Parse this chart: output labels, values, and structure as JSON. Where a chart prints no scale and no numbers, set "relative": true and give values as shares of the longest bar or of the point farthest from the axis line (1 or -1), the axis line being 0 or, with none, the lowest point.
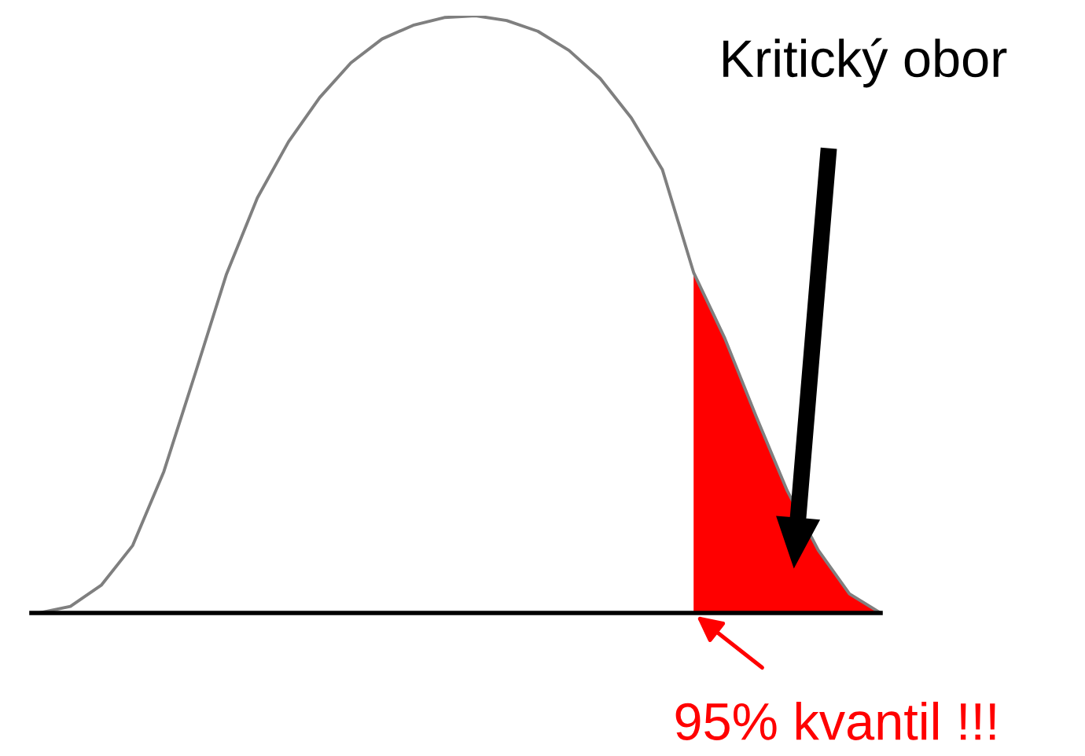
{
  "chart_data": {
    "type": "line",
    "relative": true,
    "categories": [
      null,
      null,
      null,
      null,
      null,
      null,
      null,
      null,
      null,
      null,
      null,
      null,
      null,
      null,
      null,
      null,
      null,
      null,
      null,
      null,
      null,
      null,
      null,
      null,
      null,
      null,
      null,
      null
    ],
    "series": [
      {
        "color": "#7f7f7f",
        "values": [
          0,
          0.011,
          0.047,
          0.113,
          0.237,
          0.4,
          0.566,
          0.695,
          0.789,
          0.863,
          0.921,
          0.961,
          0.984,
          0.997,
          1,
          0.992,
          0.974,
          0.942,
          0.895,
          0.829,
          0.742,
          0.57,
          0.46,
          0.33,
          0.205,
          0.105,
          0.032,
          0
        ]
      },
      {
        "type": "area",
        "color": "#ff0000",
        "values": [
          null,
          null,
          null,
          null,
          null,
          null,
          null,
          null,
          null,
          null,
          null,
          null,
          null,
          null,
          null,
          null,
          null,
          null,
          null,
          null,
          null,
          0.57,
          0.46,
          0.33,
          0.205,
          0.105,
          0.032,
          0
        ]
      }
    ],
    "annotations": [
      "Kritický obor",
      "95% kvantil !!!"
    ]
  }
}
